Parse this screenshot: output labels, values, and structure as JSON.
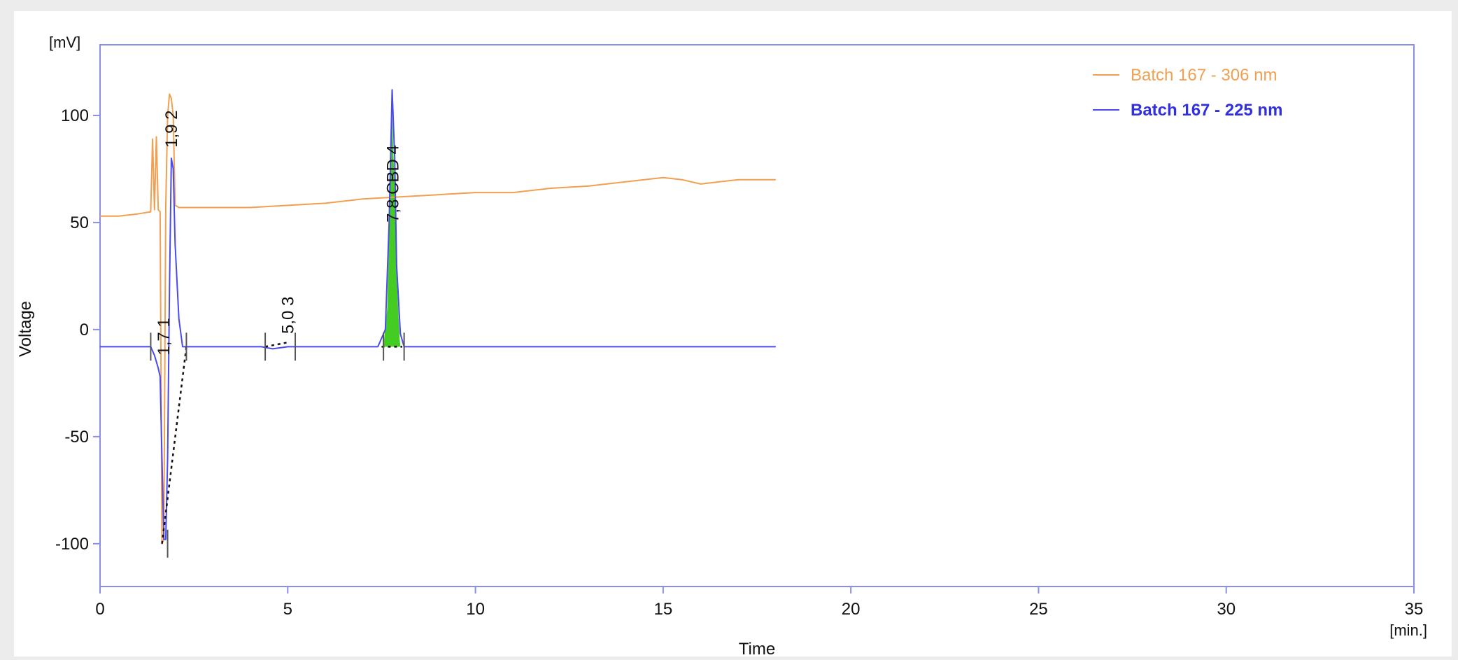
{
  "chart_data": {
    "type": "line",
    "title": "",
    "xlabel": "Time",
    "ylabel": "Voltage",
    "x_unit": "[min.]",
    "y_unit": "[mV]",
    "xlim": [
      0,
      35
    ],
    "ylim": [
      -120,
      133
    ],
    "x_ticks": [
      0,
      5,
      10,
      15,
      20,
      25,
      30,
      35
    ],
    "x_tick_labels": [
      "0",
      "5",
      "10",
      "15",
      "20",
      "25",
      "30",
      "35"
    ],
    "y_ticks": [
      -100,
      -50,
      0,
      50,
      100
    ],
    "y_tick_labels": [
      "-100",
      "-50",
      "0",
      "50",
      "100"
    ],
    "grid": false,
    "legend_position": "top-right",
    "series": [
      {
        "name": "Batch 167 - 306 nm",
        "color": "#f0a050",
        "points": [
          [
            0,
            53
          ],
          [
            0.5,
            53
          ],
          [
            1.0,
            54
          ],
          [
            1.35,
            55
          ],
          [
            1.4,
            89
          ],
          [
            1.45,
            56
          ],
          [
            1.5,
            90
          ],
          [
            1.55,
            56
          ],
          [
            1.6,
            55
          ],
          [
            1.65,
            -100
          ],
          [
            1.7,
            -98
          ],
          [
            1.75,
            57
          ],
          [
            1.8,
            100
          ],
          [
            1.85,
            110
          ],
          [
            1.9,
            108
          ],
          [
            1.95,
            100
          ],
          [
            2.0,
            58
          ],
          [
            2.1,
            57
          ],
          [
            3.0,
            57
          ],
          [
            4.0,
            57
          ],
          [
            5.0,
            58
          ],
          [
            6.0,
            59
          ],
          [
            7.0,
            61
          ],
          [
            8.0,
            62
          ],
          [
            9.0,
            63
          ],
          [
            10.0,
            64
          ],
          [
            11.0,
            64
          ],
          [
            12.0,
            66
          ],
          [
            13.0,
            67
          ],
          [
            14.0,
            69
          ],
          [
            14.5,
            70
          ],
          [
            15.0,
            71
          ],
          [
            15.5,
            70
          ],
          [
            16.0,
            68
          ],
          [
            16.5,
            69
          ],
          [
            17.0,
            70
          ],
          [
            17.5,
            70
          ],
          [
            18.0,
            70
          ]
        ]
      },
      {
        "name": "Batch 167 - 225 nm",
        "color": "#4a4af0",
        "points": [
          [
            0,
            -8
          ],
          [
            1.35,
            -8
          ],
          [
            1.45,
            -12
          ],
          [
            1.55,
            -18
          ],
          [
            1.6,
            -22
          ],
          [
            1.65,
            -60
          ],
          [
            1.7,
            -98
          ],
          [
            1.75,
            -98
          ],
          [
            1.8,
            -60
          ],
          [
            1.85,
            20
          ],
          [
            1.9,
            80
          ],
          [
            1.95,
            75
          ],
          [
            2.0,
            40
          ],
          [
            2.1,
            5
          ],
          [
            2.2,
            -8
          ],
          [
            3.0,
            -8
          ],
          [
            4.3,
            -8
          ],
          [
            4.6,
            -9
          ],
          [
            5.0,
            -8
          ],
          [
            6.0,
            -8
          ],
          [
            7.4,
            -8
          ],
          [
            7.6,
            0
          ],
          [
            7.7,
            50
          ],
          [
            7.78,
            112
          ],
          [
            7.85,
            80
          ],
          [
            7.9,
            30
          ],
          [
            8.0,
            -2
          ],
          [
            8.1,
            -8
          ],
          [
            9.0,
            -8
          ],
          [
            12.0,
            -8
          ],
          [
            15.0,
            -8
          ],
          [
            18.0,
            -8
          ]
        ]
      }
    ],
    "shaded_peak": {
      "color": "#44cc22",
      "points": [
        [
          7.55,
          -8
        ],
        [
          7.65,
          10
        ],
        [
          7.72,
          60
        ],
        [
          7.78,
          100
        ],
        [
          7.84,
          70
        ],
        [
          7.9,
          25
        ],
        [
          7.98,
          -4
        ],
        [
          8.0,
          -8
        ]
      ]
    },
    "peak_labels": [
      {
        "x": 1.7,
        "y": -12,
        "text": "1,7   1"
      },
      {
        "x": 1.9,
        "y": 85,
        "text": "1,9   2"
      },
      {
        "x": 5.0,
        "y": -2,
        "text": "5,0   3"
      },
      {
        "x": 7.8,
        "y": 50,
        "text": "7,8 CBD  4"
      }
    ],
    "baselines": [
      [
        [
          1.65,
          -100
        ],
        [
          2.3,
          -8
        ]
      ],
      [
        [
          4.4,
          -8
        ],
        [
          5.0,
          -6
        ]
      ],
      [
        [
          7.5,
          -8
        ],
        [
          8.05,
          -8
        ]
      ]
    ],
    "peak_markers": [
      {
        "x": 1.35,
        "y": -8
      },
      {
        "x": 1.8,
        "y": -100
      },
      {
        "x": 2.3,
        "y": -8
      },
      {
        "x": 4.4,
        "y": -8
      },
      {
        "x": 5.2,
        "y": -8
      },
      {
        "x": 7.55,
        "y": -8
      },
      {
        "x": 8.1,
        "y": -8
      }
    ]
  }
}
